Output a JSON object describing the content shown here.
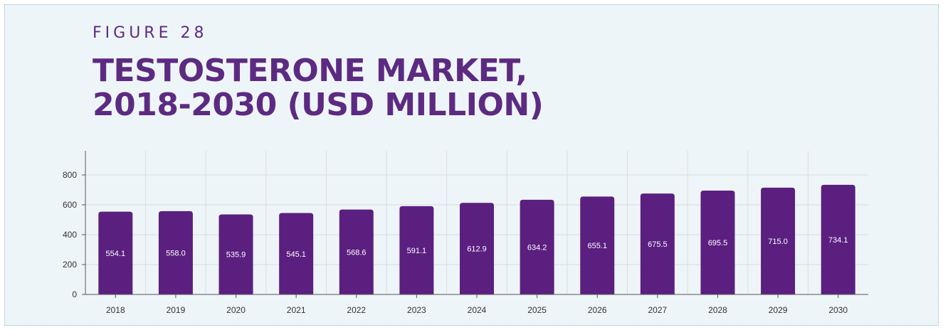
{
  "header": {
    "eyebrow": "FIGURE 28",
    "title_line1": "TESTOSTERONE MARKET,",
    "title_line2": "2018-2030 (USD MILLION)"
  },
  "colors": {
    "bar": "#5b1f80",
    "title": "#5d2a82",
    "background": "#eef5f8",
    "grid": "#d7dde2",
    "axis": "#555555"
  },
  "chart_data": {
    "type": "bar",
    "title": "TESTOSTERONE MARKET, 2018-2030 (USD MILLION)",
    "xlabel": "",
    "ylabel": "",
    "categories": [
      "2018",
      "2019",
      "2020",
      "2021",
      "2022",
      "2023",
      "2024",
      "2025",
      "2026",
      "2027",
      "2028",
      "2029",
      "2030"
    ],
    "values": [
      554.1,
      558.0,
      535.9,
      545.1,
      568.6,
      591.1,
      612.9,
      634.2,
      655.1,
      675.5,
      695.5,
      715.0,
      734.1
    ],
    "value_labels": [
      "554.1",
      "558.0",
      "535.9",
      "545.1",
      "568.6",
      "591.1",
      "612.9",
      "634.2",
      "655.1",
      "675.5",
      "695.5",
      "715.0",
      "734.1"
    ],
    "yticks": [
      0,
      200,
      400,
      600,
      800
    ],
    "ylim": [
      0,
      800
    ],
    "grid": true,
    "legend": "none"
  }
}
